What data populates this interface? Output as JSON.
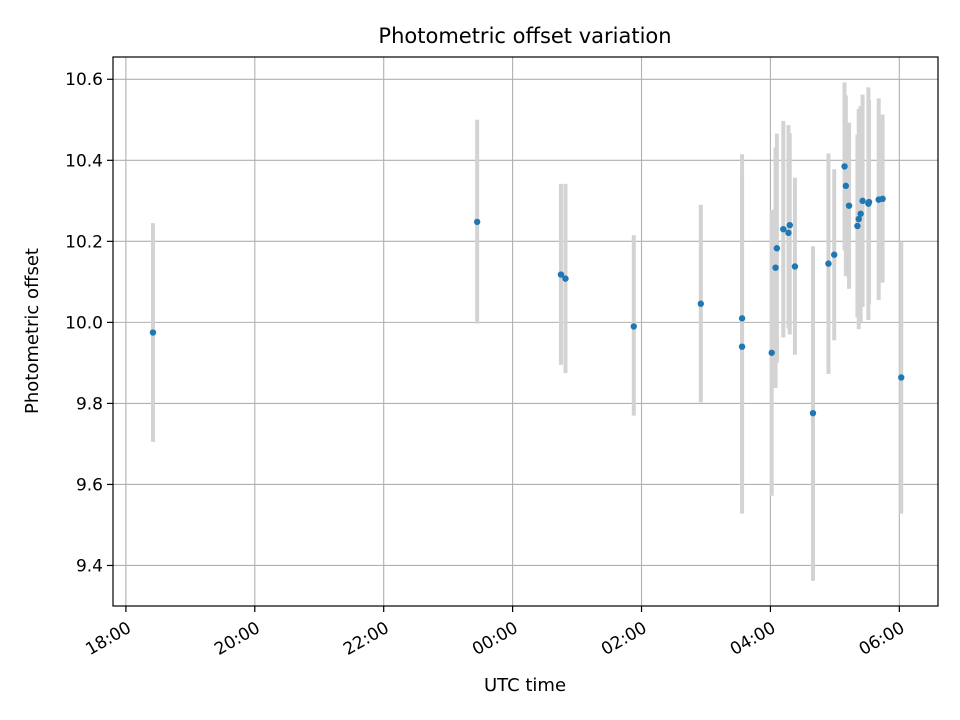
{
  "chart_data": {
    "type": "scatter",
    "title": "Photometric offset variation",
    "xlabel": "UTC time",
    "ylabel": "Photometric offset",
    "x_ticks": [
      "18:00",
      "20:00",
      "22:00",
      "00:00",
      "02:00",
      "04:00",
      "06:00"
    ],
    "x_tick_hours": [
      0,
      2,
      4,
      6,
      8,
      10,
      12
    ],
    "y_ticks": [
      "9.4",
      "9.6",
      "9.8",
      "10.0",
      "10.2",
      "10.4",
      "10.6"
    ],
    "y_tick_values": [
      9.4,
      9.6,
      9.8,
      10.0,
      10.2,
      10.4,
      10.6
    ],
    "xlim_hours": [
      -0.2,
      12.6
    ],
    "ylim": [
      9.3,
      10.655
    ],
    "grid": true,
    "marker_color": "#1f77b4",
    "errorbar_color": "#d3d3d3",
    "series": [
      {
        "points": [
          {
            "x": 0.42,
            "y": 9.975,
            "ylow": 9.705,
            "yhigh": 10.245
          },
          {
            "x": 5.45,
            "y": 10.248,
            "ylow": 9.997,
            "yhigh": 10.5
          },
          {
            "x": 6.75,
            "y": 10.118,
            "ylow": 9.895,
            "yhigh": 10.342
          },
          {
            "x": 6.82,
            "y": 10.108,
            "ylow": 9.875,
            "yhigh": 10.342
          },
          {
            "x": 7.88,
            "y": 9.99,
            "ylow": 9.77,
            "yhigh": 10.215
          },
          {
            "x": 8.92,
            "y": 10.046,
            "ylow": 9.803,
            "yhigh": 10.29
          },
          {
            "x": 9.56,
            "y": 10.01,
            "ylow": 9.605,
            "yhigh": 10.415
          },
          {
            "x": 9.56,
            "y": 9.94,
            "ylow": 9.528,
            "yhigh": 10.352
          },
          {
            "x": 10.02,
            "y": 9.925,
            "ylow": 9.572,
            "yhigh": 10.278
          },
          {
            "x": 10.08,
            "y": 10.135,
            "ylow": 9.838,
            "yhigh": 10.432
          },
          {
            "x": 10.1,
            "y": 10.183,
            "ylow": 9.9,
            "yhigh": 10.466
          },
          {
            "x": 10.2,
            "y": 10.23,
            "ylow": 9.963,
            "yhigh": 10.497
          },
          {
            "x": 10.28,
            "y": 10.221,
            "ylow": 9.985,
            "yhigh": 10.487
          },
          {
            "x": 10.3,
            "y": 10.24,
            "ylow": 9.97,
            "yhigh": 10.467
          },
          {
            "x": 10.38,
            "y": 10.138,
            "ylow": 9.92,
            "yhigh": 10.357
          },
          {
            "x": 10.66,
            "y": 9.776,
            "ylow": 9.362,
            "yhigh": 10.188
          },
          {
            "x": 10.9,
            "y": 10.145,
            "ylow": 9.873,
            "yhigh": 10.417
          },
          {
            "x": 10.99,
            "y": 10.167,
            "ylow": 9.956,
            "yhigh": 10.378
          },
          {
            "x": 11.15,
            "y": 10.385,
            "ylow": 10.178,
            "yhigh": 10.592
          },
          {
            "x": 11.17,
            "y": 10.337,
            "ylow": 10.114,
            "yhigh": 10.56
          },
          {
            "x": 11.22,
            "y": 10.288,
            "ylow": 10.083,
            "yhigh": 10.493
          },
          {
            "x": 11.35,
            "y": 10.238,
            "ylow": 10.013,
            "yhigh": 10.463
          },
          {
            "x": 11.37,
            "y": 10.255,
            "ylow": 9.983,
            "yhigh": 10.527
          },
          {
            "x": 11.4,
            "y": 10.268,
            "ylow": 10.002,
            "yhigh": 10.534
          },
          {
            "x": 11.43,
            "y": 10.3,
            "ylow": 10.038,
            "yhigh": 10.562
          },
          {
            "x": 11.52,
            "y": 10.293,
            "ylow": 10.006,
            "yhigh": 10.58
          },
          {
            "x": 11.53,
            "y": 10.297,
            "ylow": 10.045,
            "yhigh": 10.549
          },
          {
            "x": 11.68,
            "y": 10.303,
            "ylow": 10.055,
            "yhigh": 10.553
          },
          {
            "x": 11.74,
            "y": 10.305,
            "ylow": 10.098,
            "yhigh": 10.513
          },
          {
            "x": 12.03,
            "y": 9.864,
            "ylow": 9.528,
            "yhigh": 10.2
          }
        ]
      }
    ]
  }
}
